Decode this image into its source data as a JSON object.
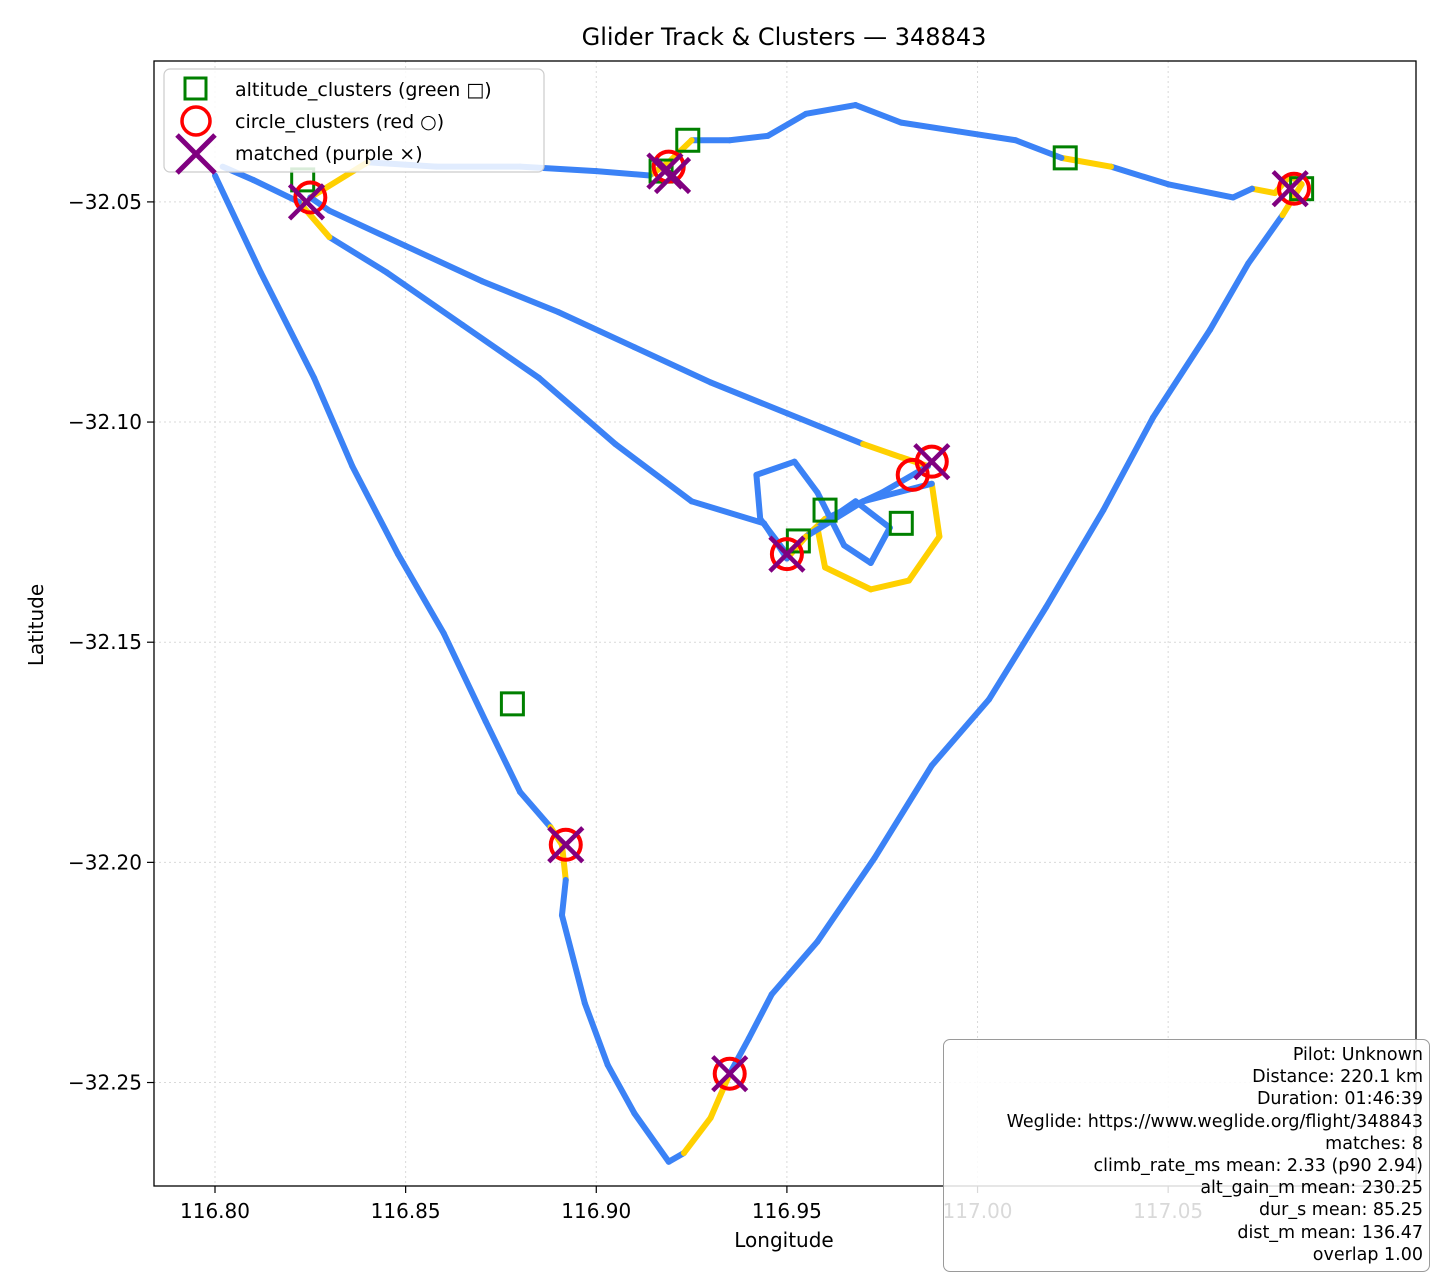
{
  "chart_data": {
    "type": "scatter",
    "title": "Glider Track & Clusters — 348843",
    "xlabel": "Longitude",
    "ylabel": "Latitude",
    "xlim": [
      116.784,
      117.115
    ],
    "ylim": [
      -32.2735,
      -32.018
    ],
    "x_ticks": [
      116.8,
      116.85,
      116.9,
      116.95,
      117.0,
      117.05
    ],
    "x_tick_labels": [
      "116.80",
      "116.85",
      "116.90",
      "116.95",
      "117.00",
      "117.05"
    ],
    "y_ticks": [
      -32.05,
      -32.1,
      -32.15,
      -32.2,
      -32.25
    ],
    "y_tick_labels": [
      "−32.05",
      "−32.10",
      "−32.15",
      "−32.20",
      "−32.25"
    ],
    "grid": true,
    "legend_position": "upper-left",
    "colors": {
      "track_blue": "#3b82f6",
      "track_yellow": "#ffd000",
      "altitude_marker": "#008000",
      "circle_marker": "#ff0000",
      "matched_marker": "#800080"
    },
    "track": [
      {
        "x": 116.8,
        "y": -32.044,
        "seg": "blue"
      },
      {
        "x": 116.812,
        "y": -32.066,
        "seg": "blue"
      },
      {
        "x": 116.826,
        "y": -32.09,
        "seg": "blue"
      },
      {
        "x": 116.836,
        "y": -32.11,
        "seg": "blue"
      },
      {
        "x": 116.848,
        "y": -32.13,
        "seg": "blue"
      },
      {
        "x": 116.86,
        "y": -32.148,
        "seg": "blue"
      },
      {
        "x": 116.871,
        "y": -32.168,
        "seg": "blue"
      },
      {
        "x": 116.88,
        "y": -32.184,
        "seg": "blue"
      },
      {
        "x": 116.888,
        "y": -32.192,
        "seg": "blue"
      },
      {
        "x": 116.891,
        "y": -32.196,
        "seg": "yellow"
      },
      {
        "x": 116.892,
        "y": -32.204,
        "seg": "yellow"
      },
      {
        "x": 116.891,
        "y": -32.212,
        "seg": "blue"
      },
      {
        "x": 116.897,
        "y": -32.232,
        "seg": "blue"
      },
      {
        "x": 116.903,
        "y": -32.246,
        "seg": "blue"
      },
      {
        "x": 116.91,
        "y": -32.257,
        "seg": "blue"
      },
      {
        "x": 116.919,
        "y": -32.268,
        "seg": "blue"
      },
      {
        "x": 116.923,
        "y": -32.266,
        "seg": "blue"
      },
      {
        "x": 116.93,
        "y": -32.258,
        "seg": "yellow"
      },
      {
        "x": 116.935,
        "y": -32.248,
        "seg": "yellow"
      },
      {
        "x": 116.94,
        "y": -32.24,
        "seg": "blue"
      },
      {
        "x": 116.946,
        "y": -32.23,
        "seg": "blue"
      },
      {
        "x": 116.958,
        "y": -32.218,
        "seg": "blue"
      },
      {
        "x": 116.973,
        "y": -32.199,
        "seg": "blue"
      },
      {
        "x": 116.988,
        "y": -32.178,
        "seg": "blue"
      },
      {
        "x": 117.003,
        "y": -32.163,
        "seg": "blue"
      },
      {
        "x": 117.018,
        "y": -32.142,
        "seg": "blue"
      },
      {
        "x": 117.033,
        "y": -32.12,
        "seg": "blue"
      },
      {
        "x": 117.046,
        "y": -32.099,
        "seg": "blue"
      },
      {
        "x": 117.061,
        "y": -32.079,
        "seg": "blue"
      },
      {
        "x": 117.071,
        "y": -32.064,
        "seg": "blue"
      },
      {
        "x": 117.08,
        "y": -32.053,
        "seg": "blue"
      },
      {
        "x": 117.085,
        "y": -32.046,
        "seg": "yellow"
      },
      {
        "x": 117.082,
        "y": -32.044,
        "seg": "yellow"
      },
      {
        "x": 117.078,
        "y": -32.048,
        "seg": "yellow"
      },
      {
        "x": 117.072,
        "y": -32.047,
        "seg": "yellow"
      },
      {
        "x": 117.067,
        "y": -32.049,
        "seg": "blue"
      },
      {
        "x": 117.05,
        "y": -32.046,
        "seg": "blue"
      },
      {
        "x": 117.035,
        "y": -32.042,
        "seg": "blue"
      },
      {
        "x": 117.022,
        "y": -32.04,
        "seg": "yellow"
      },
      {
        "x": 117.01,
        "y": -32.036,
        "seg": "blue"
      },
      {
        "x": 116.995,
        "y": -32.034,
        "seg": "blue"
      },
      {
        "x": 116.98,
        "y": -32.032,
        "seg": "blue"
      },
      {
        "x": 116.968,
        "y": -32.028,
        "seg": "blue"
      },
      {
        "x": 116.955,
        "y": -32.03,
        "seg": "blue"
      },
      {
        "x": 116.945,
        "y": -32.035,
        "seg": "blue"
      },
      {
        "x": 116.935,
        "y": -32.036,
        "seg": "blue"
      },
      {
        "x": 116.925,
        "y": -32.036,
        "seg": "blue"
      },
      {
        "x": 116.919,
        "y": -32.041,
        "seg": "yellow"
      },
      {
        "x": 116.914,
        "y": -32.044,
        "seg": "yellow"
      },
      {
        "x": 116.9,
        "y": -32.043,
        "seg": "blue"
      },
      {
        "x": 116.88,
        "y": -32.042,
        "seg": "blue"
      },
      {
        "x": 116.858,
        "y": -32.042,
        "seg": "blue"
      },
      {
        "x": 116.84,
        "y": -32.041,
        "seg": "blue"
      },
      {
        "x": 116.825,
        "y": -32.049,
        "seg": "yellow"
      },
      {
        "x": 116.83,
        "y": -32.052,
        "seg": "blue"
      },
      {
        "x": 116.85,
        "y": -32.06,
        "seg": "blue"
      },
      {
        "x": 116.87,
        "y": -32.068,
        "seg": "blue"
      },
      {
        "x": 116.89,
        "y": -32.075,
        "seg": "blue"
      },
      {
        "x": 116.91,
        "y": -32.083,
        "seg": "blue"
      },
      {
        "x": 116.93,
        "y": -32.091,
        "seg": "blue"
      },
      {
        "x": 116.95,
        "y": -32.098,
        "seg": "blue"
      },
      {
        "x": 116.97,
        "y": -32.105,
        "seg": "blue"
      },
      {
        "x": 116.98,
        "y": -32.108,
        "seg": "yellow"
      },
      {
        "x": 116.987,
        "y": -32.11,
        "seg": "yellow"
      },
      {
        "x": 116.975,
        "y": -32.116,
        "seg": "blue"
      },
      {
        "x": 116.96,
        "y": -32.122,
        "seg": "blue"
      },
      {
        "x": 116.95,
        "y": -32.13,
        "seg": "yellow"
      },
      {
        "x": 116.943,
        "y": -32.122,
        "seg": "blue"
      },
      {
        "x": 116.942,
        "y": -32.112,
        "seg": "blue"
      },
      {
        "x": 116.952,
        "y": -32.109,
        "seg": "blue"
      },
      {
        "x": 116.958,
        "y": -32.116,
        "seg": "blue"
      },
      {
        "x": 116.965,
        "y": -32.128,
        "seg": "blue"
      },
      {
        "x": 116.972,
        "y": -32.132,
        "seg": "blue"
      },
      {
        "x": 116.977,
        "y": -32.124,
        "seg": "blue"
      },
      {
        "x": 116.968,
        "y": -32.118,
        "seg": "blue"
      },
      {
        "x": 116.958,
        "y": -32.124,
        "seg": "blue"
      },
      {
        "x": 116.96,
        "y": -32.133,
        "seg": "yellow"
      },
      {
        "x": 116.972,
        "y": -32.138,
        "seg": "yellow"
      },
      {
        "x": 116.982,
        "y": -32.136,
        "seg": "yellow"
      },
      {
        "x": 116.99,
        "y": -32.126,
        "seg": "yellow"
      },
      {
        "x": 116.988,
        "y": -32.114,
        "seg": "yellow"
      },
      {
        "x": 116.97,
        "y": -32.118,
        "seg": "blue"
      },
      {
        "x": 116.955,
        "y": -32.126,
        "seg": "blue"
      },
      {
        "x": 116.95,
        "y": -32.131,
        "seg": "yellow"
      },
      {
        "x": 116.944,
        "y": -32.123,
        "seg": "blue"
      },
      {
        "x": 116.925,
        "y": -32.118,
        "seg": "blue"
      },
      {
        "x": 116.905,
        "y": -32.105,
        "seg": "blue"
      },
      {
        "x": 116.885,
        "y": -32.09,
        "seg": "blue"
      },
      {
        "x": 116.865,
        "y": -32.078,
        "seg": "blue"
      },
      {
        "x": 116.845,
        "y": -32.066,
        "seg": "blue"
      },
      {
        "x": 116.83,
        "y": -32.058,
        "seg": "blue"
      },
      {
        "x": 116.822,
        "y": -32.05,
        "seg": "yellow"
      },
      {
        "x": 116.81,
        "y": -32.045,
        "seg": "blue"
      },
      {
        "x": 116.802,
        "y": -32.042,
        "seg": "blue"
      }
    ],
    "altitude_clusters": [
      {
        "x": 116.823,
        "y": -32.045
      },
      {
        "x": 116.917,
        "y": -32.043
      },
      {
        "x": 116.924,
        "y": -32.036
      },
      {
        "x": 117.023,
        "y": -32.04
      },
      {
        "x": 117.085,
        "y": -32.047
      },
      {
        "x": 116.98,
        "y": -32.123
      },
      {
        "x": 116.96,
        "y": -32.12
      },
      {
        "x": 116.953,
        "y": -32.127
      },
      {
        "x": 116.878,
        "y": -32.164
      }
    ],
    "circle_clusters": [
      {
        "x": 116.825,
        "y": -32.049
      },
      {
        "x": 116.919,
        "y": -32.042
      },
      {
        "x": 117.083,
        "y": -32.047
      },
      {
        "x": 116.983,
        "y": -32.112
      },
      {
        "x": 116.988,
        "y": -32.109
      },
      {
        "x": 116.95,
        "y": -32.13
      },
      {
        "x": 116.892,
        "y": -32.196
      },
      {
        "x": 116.935,
        "y": -32.248
      }
    ],
    "matched": [
      {
        "x": 116.824,
        "y": -32.05
      },
      {
        "x": 116.918,
        "y": -32.043
      },
      {
        "x": 117.082,
        "y": -32.047
      },
      {
        "x": 116.988,
        "y": -32.109
      },
      {
        "x": 116.95,
        "y": -32.13
      },
      {
        "x": 116.892,
        "y": -32.196
      },
      {
        "x": 116.935,
        "y": -32.248
      },
      {
        "x": 116.92,
        "y": -32.044
      }
    ],
    "legend": [
      {
        "label": "altitude_clusters (green □)",
        "marker": "square"
      },
      {
        "label": "circle_clusters (red ○)",
        "marker": "circle"
      },
      {
        "label": "matched (purple ×)",
        "marker": "x"
      }
    ]
  },
  "stats": [
    "Pilot: Unknown",
    "Distance: 220.1 km",
    "Duration: 01:46:39",
    "Weglide: https://www.weglide.org/flight/348843",
    "matches: 8",
    "climb_rate_ms mean: 2.33 (p90 2.94)",
    "alt_gain_m mean: 230.25",
    "dur_s mean: 85.25",
    "dist_m mean: 136.47",
    "overlap 1.00"
  ]
}
